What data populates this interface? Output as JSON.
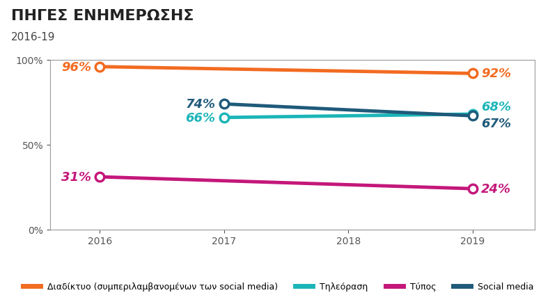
{
  "chart_data": {
    "type": "line",
    "title": "ΠΗΓΕΣ ΕΝΗΜΕΡΩΣΗΣ",
    "subtitle": "2016-19",
    "xlim": [
      2015.6,
      2019.5
    ],
    "xticks": [
      2016,
      2017,
      2018,
      2019
    ],
    "ylim": [
      0,
      100
    ],
    "yticks": [
      {
        "value": 0,
        "label": "0%"
      },
      {
        "value": 50,
        "label": "50%"
      },
      {
        "value": 100,
        "label": "100%"
      }
    ],
    "grid": false,
    "legend": "lower center",
    "data_labels": true,
    "marker": "o",
    "series": [
      {
        "name": "Διαδίκτυο (συμπεριλαμβανομένων των social media)",
        "color": "#f26b21",
        "x": [
          2016,
          2019
        ],
        "values": [
          96,
          92
        ],
        "value_labels": [
          "96%",
          "92%"
        ]
      },
      {
        "name": "Τηλεόραση",
        "color": "#1bb5b8",
        "x": [
          2017,
          2019
        ],
        "values": [
          66,
          68
        ],
        "value_labels": [
          "66%",
          "68%"
        ]
      },
      {
        "name": "Τύπος",
        "color": "#c4177a",
        "x": [
          2016,
          2019
        ],
        "values": [
          31,
          24
        ],
        "value_labels": [
          "31%",
          "24%"
        ]
      },
      {
        "name": "Social media",
        "color": "#1f5a7a",
        "x": [
          2017,
          2019
        ],
        "values": [
          74,
          67
        ],
        "value_labels": [
          "74%",
          "67%"
        ]
      }
    ]
  }
}
